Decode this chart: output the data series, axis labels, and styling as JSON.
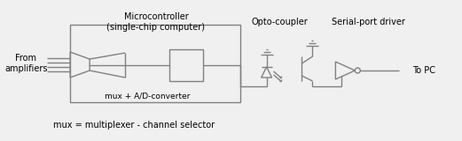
{
  "bg_color": "#f0f0f0",
  "line_color": "#808080",
  "text_color": "#000000",
  "labels": {
    "from_amplifiers": "From\namplifiers",
    "microcontroller": "Microcontroller\n(single-chip computer)",
    "mux_label": "mux + A/D-converter",
    "opto_label": "Opto-coupler",
    "serial_label": "Serial-port driver",
    "to_pc": "To PC",
    "footnote": "mux = multiplexer - channel selector"
  },
  "figsize": [
    5.21,
    1.6
  ],
  "dpi": 100
}
